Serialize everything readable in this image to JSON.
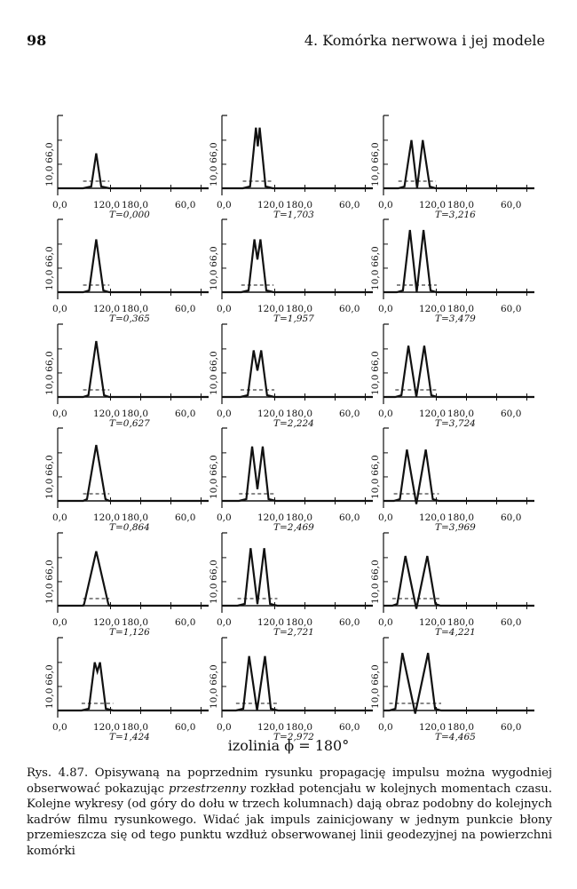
{
  "header": {
    "page_number": "98",
    "running_title": "4. Komórka nerwowa i jej modele"
  },
  "chart_data": {
    "type": "line",
    "layout": "small multiples, 6 rows x 3 columns; panels ordered top to bottom within each column",
    "y_ticks": [
      "10,0",
      "66,0"
    ],
    "x_ticks": [
      "0,0",
      "120,0",
      "180,0",
      "60,0"
    ],
    "baseline_style": "dashed line at rest potential under each pulse",
    "panels": [
      {
        "t_label": "T=0,000",
        "x": [
          0,
          36,
          40,
          44,
          48,
          52,
          56,
          60,
          64,
          68,
          72,
          76,
          80,
          84,
          88,
          92,
          96,
          100,
          104,
          108,
          112,
          116,
          120,
          124,
          128,
          132,
          136,
          140,
          144,
          180
        ],
        "y": [
          10,
          10,
          10,
          10,
          10,
          10,
          10,
          10,
          10,
          10,
          10,
          10,
          10,
          10,
          10,
          10,
          10,
          10,
          10,
          10,
          10,
          10,
          10,
          10,
          10,
          10,
          10,
          10,
          10,
          10
        ],
        "peaks": [
          {
            "x": 44,
            "y": 55,
            "w": 1
          }
        ]
      },
      {
        "t_label": "T=0,365",
        "x": [],
        "y": [],
        "peaks": [
          {
            "x": 44,
            "y": 78,
            "w": 2.5
          }
        ]
      },
      {
        "t_label": "T=0,627",
        "x": [],
        "y": [],
        "peaks": [
          {
            "x": 44,
            "y": 82,
            "w": 3
          }
        ]
      },
      {
        "t_label": "T=0,864",
        "x": [],
        "y": [],
        "peaks": [
          {
            "x": 44,
            "y": 82,
            "w": 4
          }
        ]
      },
      {
        "t_label": "T=1,126",
        "x": [],
        "y": [],
        "peaks": [
          {
            "x": 44,
            "y": 80,
            "w": 6
          }
        ]
      },
      {
        "t_label": "T=1,424",
        "x": [],
        "y": [],
        "peaks": [
          {
            "x": 42,
            "y": 72,
            "w": 2
          },
          {
            "x": 49,
            "y": 72,
            "w": 2
          }
        ],
        "plateau_dip": 60
      },
      {
        "t_label": "T=1,703",
        "x": [],
        "y": [],
        "peaks": [
          {
            "x": 38,
            "y": 88,
            "w": 2
          },
          {
            "x": 43,
            "y": 88,
            "w": 2
          }
        ],
        "plateau_dip": 64
      },
      {
        "t_label": "T=1,957",
        "x": [],
        "y": [],
        "peaks": [
          {
            "x": 36,
            "y": 78,
            "w": 2
          },
          {
            "x": 44,
            "y": 78,
            "w": 2
          }
        ],
        "plateau_dip": 52
      },
      {
        "t_label": "T=2,224",
        "x": [],
        "y": [],
        "peaks": [
          {
            "x": 35,
            "y": 70,
            "w": 2
          },
          {
            "x": 45,
            "y": 70,
            "w": 2
          }
        ],
        "plateau_dip": 44
      },
      {
        "t_label": "T=2,469",
        "x": [],
        "y": [],
        "peaks": [
          {
            "x": 33,
            "y": 80,
            "w": 2
          },
          {
            "x": 47,
            "y": 80,
            "w": 2
          }
        ],
        "plateau_dip": 25
      },
      {
        "t_label": "T=2,721",
        "x": [],
        "y": [],
        "peaks": [
          {
            "x": 31,
            "y": 84,
            "w": 2
          },
          {
            "x": 49,
            "y": 84,
            "w": 2
          }
        ],
        "plateau_dip": 12
      },
      {
        "t_label": "T=2,972",
        "x": [],
        "y": [],
        "peaks": [
          {
            "x": 29,
            "y": 80,
            "w": 2
          },
          {
            "x": 50,
            "y": 80,
            "w": 2
          }
        ],
        "plateau_dip": 10
      },
      {
        "t_label": "T=3,216",
        "x": [],
        "y": [],
        "peaks": [
          {
            "x": 30,
            "y": 72,
            "w": 3
          },
          {
            "x": 45,
            "y": 72,
            "w": 3
          }
        ],
        "plateau_dip": 10
      },
      {
        "t_label": "T=3,479",
        "x": [],
        "y": [],
        "peaks": [
          {
            "x": 28,
            "y": 90,
            "w": 3
          },
          {
            "x": 46,
            "y": 90,
            "w": 3
          }
        ],
        "plateau_dip": 10
      },
      {
        "t_label": "T=3,724",
        "x": [],
        "y": [],
        "peaks": [
          {
            "x": 26,
            "y": 76,
            "w": 3
          },
          {
            "x": 47,
            "y": 76,
            "w": 3
          }
        ],
        "plateau_dip": 10
      },
      {
        "t_label": "T=3,969",
        "x": [],
        "y": [],
        "peaks": [
          {
            "x": 24,
            "y": 76,
            "w": 3
          },
          {
            "x": 49,
            "y": 76,
            "w": 3
          }
        ],
        "plateau_dip": 6
      },
      {
        "t_label": "T=4,221",
        "x": [],
        "y": [],
        "peaks": [
          {
            "x": 22,
            "y": 74,
            "w": 4
          },
          {
            "x": 51,
            "y": 74,
            "w": 4
          }
        ],
        "plateau_dip": 6
      },
      {
        "t_label": "T=4,465",
        "x": [],
        "y": [],
        "peaks": [
          {
            "x": 18,
            "y": 84,
            "w": 3
          },
          {
            "x": 52,
            "y": 84,
            "w": 3
          }
        ],
        "plateau_dip": 6
      }
    ],
    "subtitle": "izolinia ϕ = 180°"
  },
  "caption": {
    "label": "Rys. 4.87.",
    "text_before": "Opisywaną na poprzednim rysunku propagację impulsu można wygodniej obserwować pokazując",
    "emph": "przestrzenny",
    "text_after": "rozkład potencjału w kolejnych momentach czasu. Kolejne wykresy (od góry do dołu w trzech kolumnach) dają obraz podobny do kolejnych kadrów filmu rysunkowego. Widać jak impuls zainicjowany w jednym punkcie błony przemieszcza się od tego punktu wzdłuż obserwowanej linii geodezyjnej na powierzchni komórki"
  }
}
